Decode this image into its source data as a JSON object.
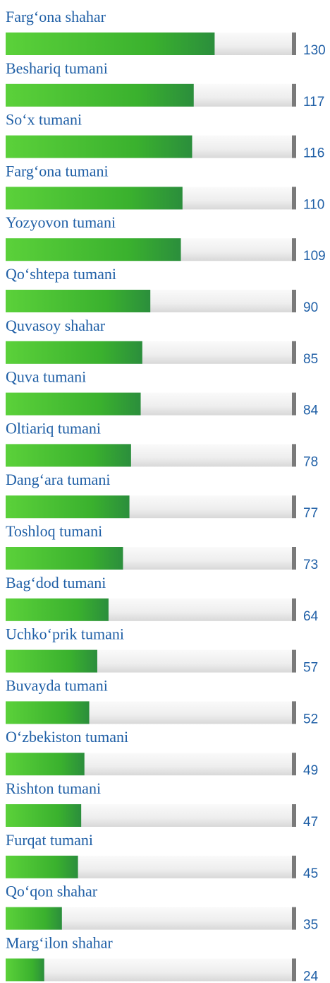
{
  "chart_data": {
    "type": "bar",
    "orientation": "horizontal",
    "categories": [
      "Farg‘ona shahar",
      "Beshariq tumani",
      "So‘x tumani",
      "Farg‘ona tumani",
      "Yozyovon tumani",
      "Qo‘shtepa tumani",
      "Quvasoy shahar",
      "Quva tumani",
      "Oltiariq tumani",
      "Dang‘ara tumani",
      "Toshloq tumani",
      "Bag‘dod tumani",
      "Uchko‘prik tumani",
      "Buvayda tumani",
      "O‘zbekiston tumani",
      "Rishton tumani",
      "Furqat tumani",
      "Qo‘qon shahar",
      "Marg‘ilon shahar"
    ],
    "values": [
      130,
      117,
      116,
      110,
      109,
      90,
      85,
      84,
      78,
      77,
      73,
      64,
      57,
      52,
      49,
      47,
      45,
      35,
      24
    ],
    "color": "#3cb52e"
  }
}
